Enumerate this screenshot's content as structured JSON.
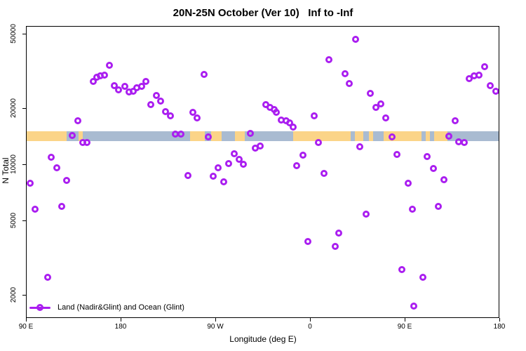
{
  "colors": {
    "point": "#AA1EF0",
    "land": "#FBD488",
    "ocean": "#A9BBD1"
  },
  "chart_data": {
    "type": "scatter",
    "title": "20N-25N October (Ver 10)   Inf to -Inf",
    "xlabel": "Longitude (deg E)",
    "ylabel": "N Total",
    "grid": false,
    "x_axis": {
      "range": [
        90,
        540
      ],
      "ticks": [
        90,
        180,
        270,
        360,
        450,
        540
      ],
      "tick_labels": [
        "90 E",
        "180",
        "90 W",
        "0",
        "90 E",
        "180"
      ]
    },
    "y_axis": {
      "scale": "log",
      "range": [
        1500,
        55000
      ],
      "ticks": [
        2000,
        5000,
        10000,
        20000,
        50000
      ],
      "tick_labels": [
        "2000",
        "5000",
        "10000",
        "20000",
        "50000"
      ]
    },
    "legend": {
      "label": "Land (Nadir&Glint) and Ocean (Glint)",
      "position": "bottom-left"
    },
    "map_band": {
      "description": "world land/ocean strip for 20N-25N drawn across plot",
      "value_range": [
        13400,
        15200
      ],
      "land_color": "#FBD488",
      "ocean_color": "#A9BBD1",
      "segments": [
        {
          "from": 90,
          "to": 128,
          "surface": "land"
        },
        {
          "from": 128,
          "to": 139,
          "surface": "ocean"
        },
        {
          "from": 139,
          "to": 143,
          "surface": "land"
        },
        {
          "from": 143,
          "to": 245,
          "surface": "ocean"
        },
        {
          "from": 245,
          "to": 259,
          "surface": "land"
        },
        {
          "from": 259,
          "to": 265,
          "surface": "ocean"
        },
        {
          "from": 265,
          "to": 275,
          "surface": "land"
        },
        {
          "from": 275,
          "to": 288,
          "surface": "ocean"
        },
        {
          "from": 288,
          "to": 297,
          "surface": "land"
        },
        {
          "from": 297,
          "to": 343,
          "surface": "ocean"
        },
        {
          "from": 343,
          "to": 398,
          "surface": "land"
        },
        {
          "from": 398,
          "to": 402,
          "surface": "ocean"
        },
        {
          "from": 402,
          "to": 410,
          "surface": "land"
        },
        {
          "from": 410,
          "to": 415,
          "surface": "ocean"
        },
        {
          "from": 415,
          "to": 419,
          "surface": "land"
        },
        {
          "from": 419,
          "to": 429,
          "surface": "ocean"
        },
        {
          "from": 429,
          "to": 465,
          "surface": "land"
        },
        {
          "from": 465,
          "to": 469,
          "surface": "ocean"
        },
        {
          "from": 469,
          "to": 473,
          "surface": "land"
        },
        {
          "from": 473,
          "to": 477,
          "surface": "ocean"
        },
        {
          "from": 477,
          "to": 490,
          "surface": "land"
        },
        {
          "from": 490,
          "to": 540,
          "surface": "ocean"
        }
      ]
    },
    "series": [
      {
        "name": "Land (Nadir&Glint) and Ocean (Glint)",
        "marker": "open-circle",
        "color": "#AA1EF0",
        "points": [
          [
            168.7,
            34100
          ],
          [
            164.0,
            30200
          ],
          [
            160.0,
            29900
          ],
          [
            156.7,
            29500
          ],
          [
            153.3,
            28000
          ],
          [
            173.3,
            26600
          ],
          [
            177.3,
            25200
          ],
          [
            183.3,
            26300
          ],
          [
            187.3,
            24600
          ],
          [
            191.3,
            24900
          ],
          [
            194.7,
            25800
          ],
          [
            199.3,
            26300
          ],
          [
            203.3,
            28000
          ],
          [
            208.0,
            21000
          ],
          [
            213.3,
            23500
          ],
          [
            217.3,
            21900
          ],
          [
            222.0,
            19300
          ],
          [
            226.7,
            18300
          ],
          [
            138.7,
            17200
          ],
          [
            133.3,
            14400
          ],
          [
            143.3,
            13200
          ],
          [
            147.3,
            13200
          ],
          [
            231.3,
            14650
          ],
          [
            236.7,
            14650
          ],
          [
            113.3,
            11000
          ],
          [
            118.7,
            9670
          ],
          [
            128.0,
            8290
          ],
          [
            93.3,
            8000
          ],
          [
            243.3,
            8750
          ],
          [
            377.3,
            36600
          ],
          [
            258.7,
            30500
          ],
          [
            392.7,
            30800
          ],
          [
            396.7,
            27200
          ],
          [
            317.3,
            21000
          ],
          [
            321.3,
            20300
          ],
          [
            325.3,
            19800
          ],
          [
            327.3,
            19100
          ],
          [
            332.0,
            17400
          ],
          [
            336.7,
            17200
          ],
          [
            340.0,
            16800
          ],
          [
            343.3,
            15900
          ],
          [
            363.3,
            18300
          ],
          [
            248.0,
            19100
          ],
          [
            252.0,
            17800
          ],
          [
            262.7,
            14150
          ],
          [
            302.7,
            14800
          ],
          [
            307.3,
            12300
          ],
          [
            312.0,
            12600
          ],
          [
            287.3,
            11500
          ],
          [
            292.0,
            10700
          ],
          [
            296.0,
            10100
          ],
          [
            282.0,
            10200
          ],
          [
            272.0,
            9670
          ],
          [
            267.3,
            8690
          ],
          [
            277.3,
            8140
          ],
          [
            352.7,
            11300
          ],
          [
            346.7,
            9900
          ],
          [
            367.3,
            13200
          ],
          [
            372.7,
            9000
          ],
          [
            402.7,
            47100
          ],
          [
            416.7,
            24200
          ],
          [
            422.0,
            20300
          ],
          [
            426.7,
            21200
          ],
          [
            431.3,
            17800
          ],
          [
            497.3,
            17200
          ],
          [
            491.3,
            14300
          ],
          [
            510.7,
            28900
          ],
          [
            515.3,
            29900
          ],
          [
            520.0,
            30200
          ],
          [
            525.3,
            33500
          ],
          [
            530.7,
            26600
          ],
          [
            536.0,
            24900
          ],
          [
            500.7,
            13300
          ],
          [
            506.0,
            13200
          ],
          [
            437.3,
            14150
          ],
          [
            406.7,
            12500
          ],
          [
            442.0,
            11400
          ],
          [
            470.7,
            11100
          ],
          [
            476.7,
            9590
          ],
          [
            486.7,
            8360
          ],
          [
            452.7,
            8000
          ],
          [
            98.0,
            5810
          ],
          [
            123.3,
            6020
          ],
          [
            110.0,
            2490
          ],
          [
            357.3,
            3880
          ],
          [
            386.7,
            4330
          ],
          [
            383.3,
            3660
          ],
          [
            456.7,
            5810
          ],
          [
            481.3,
            6020
          ],
          [
            412.7,
            5440
          ],
          [
            446.7,
            2750
          ],
          [
            466.7,
            2490
          ],
          [
            458.0,
            1760
          ]
        ]
      }
    ]
  }
}
